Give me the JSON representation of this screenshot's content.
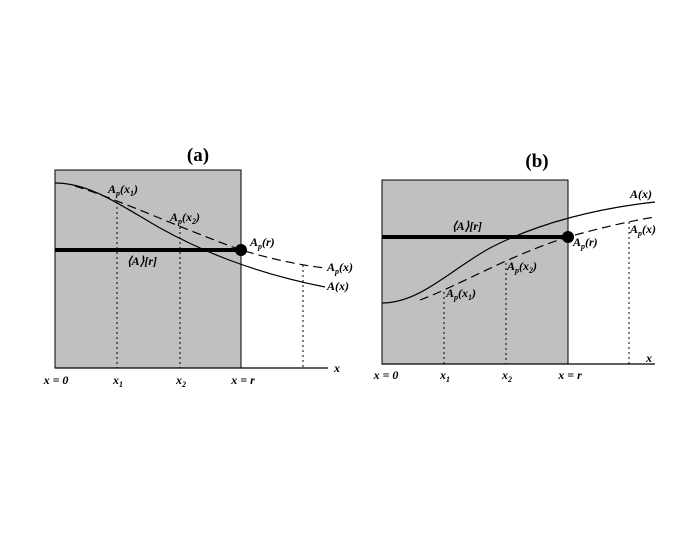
{
  "panels": [
    {
      "title": "(a)",
      "labels": [
        [
          "A",
          "p",
          "(x",
          "1",
          ")"
        ],
        [
          "A",
          "p",
          "(x",
          "2",
          ")"
        ],
        [
          "A",
          "p",
          "(r)"
        ],
        [
          "⟨A⟩[r]"
        ],
        [
          "A",
          "p",
          "(x)"
        ],
        [
          "A(x)"
        ]
      ],
      "axis_label": "x",
      "ticks": [
        [
          "x = 0"
        ],
        [
          "x",
          "1"
        ],
        [
          "x",
          "2"
        ],
        [
          "x = r"
        ]
      ]
    },
    {
      "title": "(b)",
      "labels": [
        [
          "A(x)"
        ],
        [
          "⟨A⟩[r]"
        ],
        [
          "A",
          "p",
          "(r)"
        ],
        [
          "A",
          "p",
          "(x)"
        ],
        [
          "A",
          "p",
          "(x",
          "2",
          ")"
        ],
        [
          "A",
          "p",
          "(x",
          "1",
          ")"
        ]
      ],
      "axis_label": "x",
      "ticks": [
        [
          "x = 0"
        ],
        [
          "x",
          "1"
        ],
        [
          "x",
          "2"
        ],
        [
          "x = r"
        ]
      ]
    }
  ]
}
